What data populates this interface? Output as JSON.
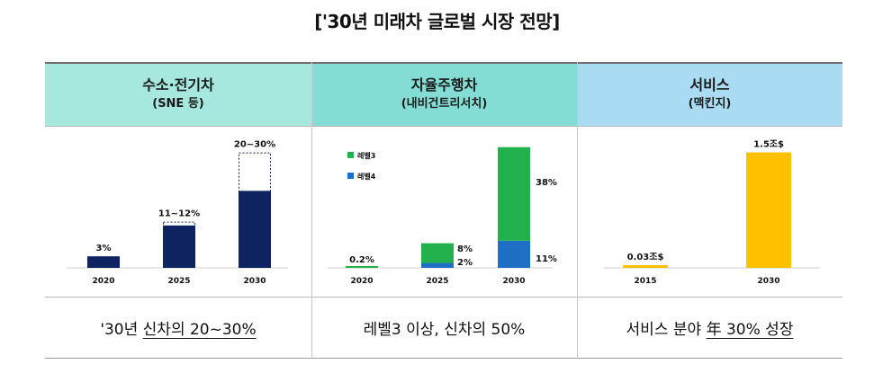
{
  "title": "['30년 미래차 글로벌 시장 전망]",
  "colors": {
    "header_1": "#a6e8de",
    "header_2": "#83ddd5",
    "header_3": "#a9dbf2",
    "navy": "#0d2460",
    "green": "#22b14c",
    "blue": "#1f6fc5",
    "gold": "#ffc000"
  },
  "columns": [
    {
      "heading": "수소·전기차",
      "sub": "(SNE 등)",
      "footer_pre": "'30년 ",
      "footer_ul": "신차의 20~30%",
      "footer_post": ""
    },
    {
      "heading": "자율주행차",
      "sub": "(내비건트리서치)",
      "footer_pre": "레벨3 이상, 신차의 50%",
      "footer_ul": "",
      "footer_post": ""
    },
    {
      "heading": "서비스",
      "sub": "(맥킨지)",
      "footer_pre": "서비스 분야 ",
      "footer_ul": "年 30% 성장",
      "footer_post": ""
    }
  ],
  "chart_data": [
    {
      "type": "bar",
      "categories": [
        "2020",
        "2025",
        "2030"
      ],
      "values_low": [
        3,
        11,
        20
      ],
      "values_high": [
        3,
        12,
        30
      ],
      "labels": [
        "3%",
        "11~12%",
        "20~30%"
      ],
      "ylim": [
        0,
        32
      ],
      "color": "#0d2460"
    },
    {
      "type": "bar",
      "stacked": true,
      "categories": [
        "2020",
        "2025",
        "2030"
      ],
      "series": [
        {
          "name": "레벨4",
          "values": [
            0,
            2,
            11
          ],
          "color": "#1f6fc5"
        },
        {
          "name": "레벨3",
          "values": [
            0.2,
            8,
            38
          ],
          "color": "#22b14c"
        }
      ],
      "labels": [
        [
          "",
          "0.2%"
        ],
        [
          "2%",
          "8%"
        ],
        [
          "11%",
          "38%"
        ]
      ],
      "ylim": [
        0,
        50
      ]
    },
    {
      "type": "bar",
      "categories": [
        "2015",
        "2030"
      ],
      "values": [
        0.03,
        1.5
      ],
      "labels": [
        "0.03조$",
        "1.5조$"
      ],
      "ylim": [
        0,
        1.6
      ],
      "color": "#ffc000"
    }
  ]
}
